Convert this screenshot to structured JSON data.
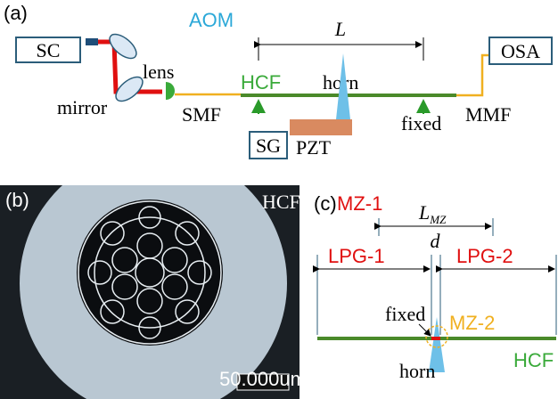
{
  "panel_a": {
    "label": "(a)",
    "sc": "SC",
    "aom": "AOM",
    "lens": "lens",
    "mirror": "mirror",
    "smf": "SMF",
    "hcf": "HCF",
    "horn": "horn",
    "length": "L",
    "osa": "OSA",
    "fixed": "fixed",
    "mmf": "MMF",
    "sg": "SG",
    "pzt": "PZT"
  },
  "panel_b": {
    "label": "(b)",
    "hcf": "HCF",
    "scale_bar": "50.000um"
  },
  "panel_c": {
    "label": "(c)",
    "mz1": "MZ-1",
    "lmz": "L",
    "lmz_sub": "MZ",
    "d": "d",
    "lpg1": "LPG-1",
    "lpg2": "LPG-2",
    "fixed": "fixed",
    "mz2": "MZ-2",
    "horn": "horn",
    "hcf": "HCF"
  }
}
